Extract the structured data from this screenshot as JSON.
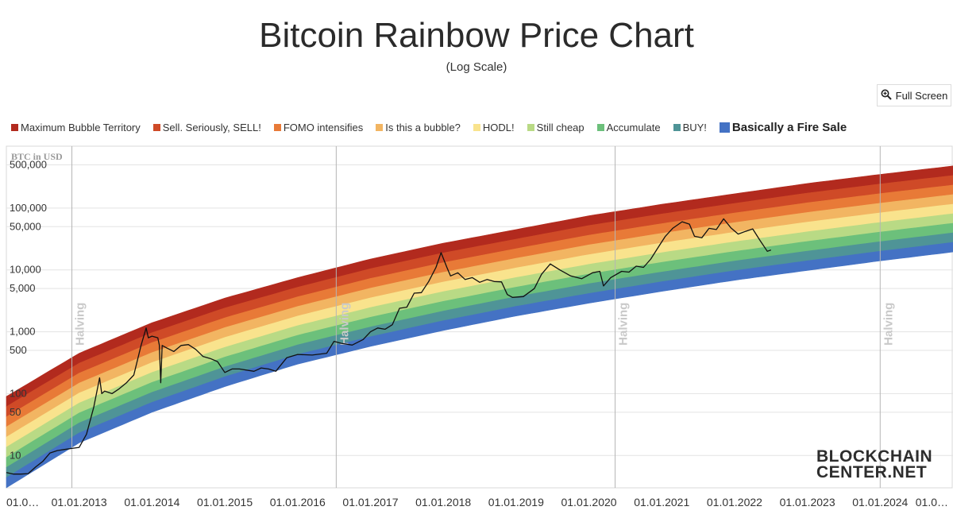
{
  "chart_data": {
    "type": "line",
    "title": "Bitcoin Rainbow Price Chart",
    "subtitle": "(Log Scale)",
    "ylabel": "BTC in USD",
    "y_scale": "log",
    "ylim": [
      3,
      1000000
    ],
    "y_ticks": [
      {
        "value": 500000,
        "label": "500,000"
      },
      {
        "value": 100000,
        "label": "100,000"
      },
      {
        "value": 50000,
        "label": "50,000"
      },
      {
        "value": 10000,
        "label": "10,000"
      },
      {
        "value": 5000,
        "label": "5,000"
      },
      {
        "value": 1000,
        "label": "1,000"
      },
      {
        "value": 500,
        "label": "500"
      },
      {
        "value": 100,
        "label": "100"
      },
      {
        "value": 50,
        "label": "50"
      },
      {
        "value": 10,
        "label": "10"
      }
    ],
    "xlim": [
      2012.0,
      2025.0
    ],
    "x_ticks": [
      {
        "value": 2012.0,
        "label": "01.0…"
      },
      {
        "value": 2013.0,
        "label": "01.01.2013"
      },
      {
        "value": 2014.0,
        "label": "01.01.2014"
      },
      {
        "value": 2015.0,
        "label": "01.01.2015"
      },
      {
        "value": 2016.0,
        "label": "01.01.2016"
      },
      {
        "value": 2017.0,
        "label": "01.01.2017"
      },
      {
        "value": 2018.0,
        "label": "01.01.2018"
      },
      {
        "value": 2019.0,
        "label": "01.01.2019"
      },
      {
        "value": 2020.0,
        "label": "01.01.2020"
      },
      {
        "value": 2021.0,
        "label": "01.01.2021"
      },
      {
        "value": 2022.0,
        "label": "01.01.2022"
      },
      {
        "value": 2023.0,
        "label": "01.01.2023"
      },
      {
        "value": 2024.0,
        "label": "01.01.2024"
      },
      {
        "value": 2025.0,
        "label": "01.0…"
      }
    ],
    "halvings": [
      {
        "date": 2012.9,
        "label": "Halving"
      },
      {
        "date": 2016.53,
        "label": "Halving"
      },
      {
        "date": 2020.36,
        "label": "Halving"
      },
      {
        "date": 2024.0,
        "label": "Halving"
      }
    ],
    "bands": [
      {
        "name": "Maximum Bubble Territory",
        "color": "#b22a1e"
      },
      {
        "name": "Sell. Seriously, SELL!",
        "color": "#cf4a27"
      },
      {
        "name": "FOMO intensifies",
        "color": "#e87a37"
      },
      {
        "name": "Is this a bubble?",
        "color": "#f2b562"
      },
      {
        "name": "HODL!",
        "color": "#f9e38d"
      },
      {
        "name": "Still cheap",
        "color": "#b9da85"
      },
      {
        "name": "Accumulate",
        "color": "#6cc07b"
      },
      {
        "name": "BUY!",
        "color": "#4f9497"
      },
      {
        "name": "Basically a Fire Sale",
        "color": "#4472c4"
      }
    ],
    "band_edges": [
      {
        "date": 2012.0,
        "lower": 3,
        "upper": 90
      },
      {
        "date": 2013.0,
        "lower": 16,
        "upper": 450
      },
      {
        "date": 2014.0,
        "lower": 50,
        "upper": 1400
      },
      {
        "date": 2015.0,
        "lower": 130,
        "upper": 3500
      },
      {
        "date": 2016.0,
        "lower": 300,
        "upper": 7500
      },
      {
        "date": 2017.0,
        "lower": 580,
        "upper": 15000
      },
      {
        "date": 2018.0,
        "lower": 1050,
        "upper": 27000
      },
      {
        "date": 2019.0,
        "lower": 1800,
        "upper": 45000
      },
      {
        "date": 2020.0,
        "lower": 2900,
        "upper": 75000
      },
      {
        "date": 2021.0,
        "lower": 4500,
        "upper": 115000
      },
      {
        "date": 2022.0,
        "lower": 6800,
        "upper": 170000
      },
      {
        "date": 2023.0,
        "lower": 9800,
        "upper": 250000
      },
      {
        "date": 2024.0,
        "lower": 14000,
        "upper": 350000
      },
      {
        "date": 2025.0,
        "lower": 19500,
        "upper": 480000
      }
    ],
    "series": [
      {
        "name": "BTC price (USD)",
        "color": "#111111",
        "points": [
          [
            2012.0,
            5.3
          ],
          [
            2012.1,
            5.0
          ],
          [
            2012.2,
            5.0
          ],
          [
            2012.3,
            5.1
          ],
          [
            2012.4,
            6.5
          ],
          [
            2012.5,
            8.0
          ],
          [
            2012.6,
            11
          ],
          [
            2012.7,
            12
          ],
          [
            2012.8,
            12.5
          ],
          [
            2012.9,
            13
          ],
          [
            2013.0,
            13.5
          ],
          [
            2013.1,
            22
          ],
          [
            2013.2,
            60
          ],
          [
            2013.28,
            180
          ],
          [
            2013.31,
            100
          ],
          [
            2013.35,
            110
          ],
          [
            2013.45,
            100
          ],
          [
            2013.55,
            120
          ],
          [
            2013.65,
            150
          ],
          [
            2013.75,
            200
          ],
          [
            2013.85,
            600
          ],
          [
            2013.92,
            1150
          ],
          [
            2013.95,
            800
          ],
          [
            2014.0,
            850
          ],
          [
            2014.08,
            800
          ],
          [
            2014.1,
            610
          ],
          [
            2014.12,
            150
          ],
          [
            2014.14,
            600
          ],
          [
            2014.2,
            550
          ],
          [
            2014.3,
            480
          ],
          [
            2014.4,
            600
          ],
          [
            2014.5,
            620
          ],
          [
            2014.6,
            520
          ],
          [
            2014.7,
            400
          ],
          [
            2014.8,
            370
          ],
          [
            2014.9,
            330
          ],
          [
            2015.0,
            220
          ],
          [
            2015.1,
            250
          ],
          [
            2015.2,
            250
          ],
          [
            2015.4,
            230
          ],
          [
            2015.5,
            260
          ],
          [
            2015.6,
            250
          ],
          [
            2015.7,
            230
          ],
          [
            2015.85,
            380
          ],
          [
            2016.0,
            430
          ],
          [
            2016.2,
            420
          ],
          [
            2016.4,
            450
          ],
          [
            2016.5,
            700
          ],
          [
            2016.6,
            650
          ],
          [
            2016.75,
            610
          ],
          [
            2016.9,
            750
          ],
          [
            2017.0,
            1000
          ],
          [
            2017.1,
            1150
          ],
          [
            2017.2,
            1100
          ],
          [
            2017.3,
            1300
          ],
          [
            2017.4,
            2400
          ],
          [
            2017.5,
            2500
          ],
          [
            2017.6,
            4200
          ],
          [
            2017.7,
            4300
          ],
          [
            2017.8,
            6500
          ],
          [
            2017.9,
            11000
          ],
          [
            2017.97,
            19000
          ],
          [
            2018.05,
            11000
          ],
          [
            2018.1,
            8000
          ],
          [
            2018.2,
            9000
          ],
          [
            2018.3,
            7000
          ],
          [
            2018.4,
            7500
          ],
          [
            2018.5,
            6300
          ],
          [
            2018.6,
            7000
          ],
          [
            2018.7,
            6500
          ],
          [
            2018.8,
            6400
          ],
          [
            2018.88,
            4000
          ],
          [
            2018.95,
            3600
          ],
          [
            2019.1,
            3700
          ],
          [
            2019.25,
            5000
          ],
          [
            2019.35,
            8500
          ],
          [
            2019.47,
            12500
          ],
          [
            2019.6,
            10000
          ],
          [
            2019.75,
            8000
          ],
          [
            2019.9,
            7200
          ],
          [
            2020.05,
            9000
          ],
          [
            2020.15,
            9500
          ],
          [
            2020.2,
            5500
          ],
          [
            2020.3,
            7500
          ],
          [
            2020.45,
            9500
          ],
          [
            2020.55,
            9200
          ],
          [
            2020.65,
            11500
          ],
          [
            2020.75,
            11000
          ],
          [
            2020.85,
            15000
          ],
          [
            2020.95,
            23000
          ],
          [
            2021.05,
            35000
          ],
          [
            2021.15,
            47000
          ],
          [
            2021.28,
            60000
          ],
          [
            2021.38,
            55000
          ],
          [
            2021.45,
            35000
          ],
          [
            2021.55,
            33000
          ],
          [
            2021.65,
            47000
          ],
          [
            2021.75,
            45000
          ],
          [
            2021.85,
            67000
          ],
          [
            2021.95,
            48000
          ],
          [
            2022.05,
            38000
          ],
          [
            2022.15,
            42000
          ],
          [
            2022.25,
            46000
          ],
          [
            2022.35,
            30000
          ],
          [
            2022.45,
            20000
          ],
          [
            2022.5,
            21000
          ]
        ]
      }
    ],
    "logo": "BLOCKCHAIN CENTER.NET"
  },
  "ui": {
    "fullscreen_label": "Full Screen",
    "logo_line1": "BLOCKCHAIN",
    "logo_line2": "CENTER.NET"
  }
}
